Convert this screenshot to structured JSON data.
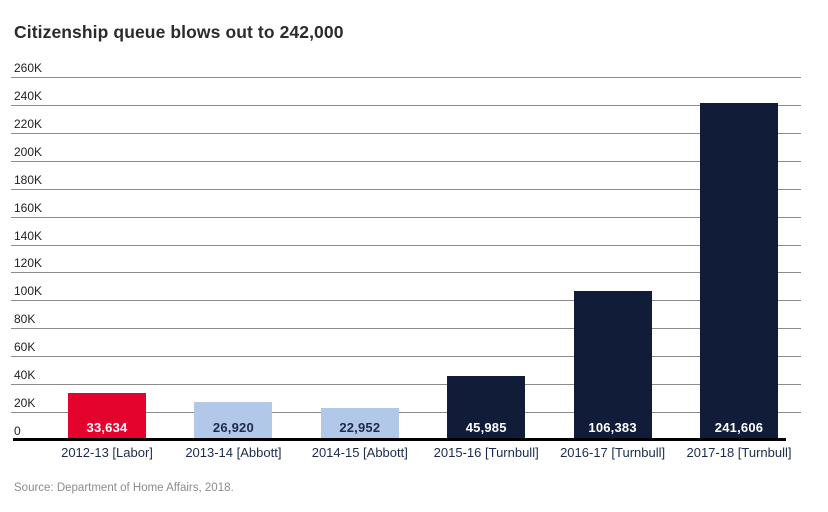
{
  "header": {
    "title": "Citizenship queue blows out to 242,000"
  },
  "footer": {
    "source": "Source: Department of Home Affairs, 2018."
  },
  "chart_data": {
    "type": "bar",
    "title": "Citizenship queue blows out to 242,000",
    "categories": [
      "2012-13 [Labor]",
      "2013-14 [Abbott]",
      "2014-15 [Abbott]",
      "2015-16 [Turnbull]",
      "2016-17 [Turnbull]",
      "2017-18 [Turnbull]"
    ],
    "values": [
      33634,
      26920,
      22952,
      45985,
      106383,
      241606
    ],
    "value_labels": [
      "33,634",
      "26,920",
      "22,952",
      "45,985",
      "106,383",
      "241,606"
    ],
    "bar_colors": [
      "#e4032c",
      "#b2c8e8",
      "#b2c8e8",
      "#101c38",
      "#101c38",
      "#101c38"
    ],
    "value_label_colors": [
      "#ffffff",
      "#1c2b4d",
      "#1c2b4d",
      "#ffffff",
      "#ffffff",
      "#ffffff"
    ],
    "xlabel": "",
    "ylabel": "",
    "ylim": [
      0,
      260000
    ],
    "yticks": [
      {
        "label": "260K",
        "value": 260000
      },
      {
        "label": "240K",
        "value": 240000
      },
      {
        "label": "220K",
        "value": 220000
      },
      {
        "label": "200K",
        "value": 200000
      },
      {
        "label": "180K",
        "value": 180000
      },
      {
        "label": "160K",
        "value": 160000
      },
      {
        "label": "140K",
        "value": 140000
      },
      {
        "label": "120K",
        "value": 120000
      },
      {
        "label": "100K",
        "value": 100000
      },
      {
        "label": "80K",
        "value": 80000
      },
      {
        "label": "60K",
        "value": 60000
      },
      {
        "label": "40K",
        "value": 40000
      },
      {
        "label": "20K",
        "value": 20000
      },
      {
        "label": "0",
        "value": 0
      }
    ],
    "grid": true,
    "legend": false,
    "source_note": "Source: Department of Home Affairs, 2018."
  },
  "colors": {
    "background": "#ffffff",
    "gridline": "#8c8c8c",
    "axis_line": "#000000",
    "ytick_label": "#222222",
    "category_label": "#1c2b4d",
    "title_text": "#2b2b2b",
    "source_text": "#8c8c8c"
  }
}
